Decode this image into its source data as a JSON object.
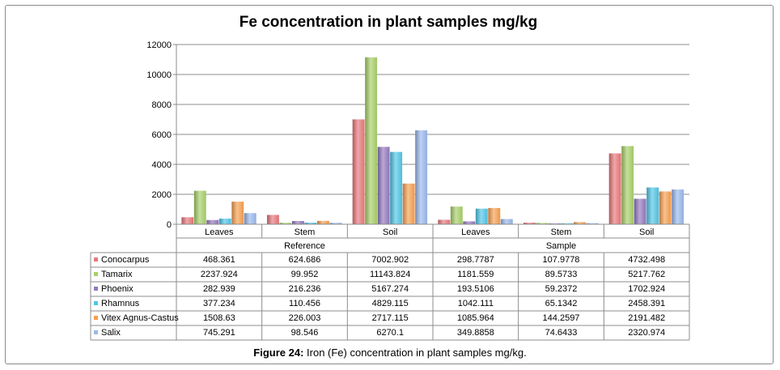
{
  "caption": {
    "figure_label": "Figure 24:",
    "text": " Iron (Fe) concentration in plant samples mg/kg."
  },
  "chart_data": {
    "type": "bar",
    "title": "Fe concentration in plant samples mg/kg",
    "xlabel": "",
    "ylabel": "",
    "ylim": [
      0,
      12000
    ],
    "yticks": [
      0,
      2000,
      4000,
      6000,
      8000,
      10000,
      12000
    ],
    "grid": true,
    "legend": "table-left",
    "groups": [
      {
        "name": "Reference",
        "categories": [
          "Leaves",
          "Stem",
          "Soil"
        ]
      },
      {
        "name": "Sample",
        "categories": [
          "Leaves",
          "Stem",
          "Soil"
        ]
      }
    ],
    "categories": [
      "Leaves",
      "Stem",
      "Soil",
      "Leaves",
      "Stem",
      "Soil"
    ],
    "series": [
      {
        "name": "Conocarpus",
        "color": "#e8787a",
        "labels": [
          "468.361",
          "624.686",
          "7002.902",
          "298.7787",
          "107.9778",
          "4732.498"
        ],
        "values": [
          468.361,
          624.686,
          7002.902,
          298.7787,
          107.9778,
          4732.498
        ]
      },
      {
        "name": "Tamarix",
        "color": "#a8d068",
        "labels": [
          "2237.924",
          "99.952",
          "11143.824",
          "1181.559",
          "89.5733",
          "5217.762"
        ],
        "values": [
          2237.924,
          99.952,
          11143.824,
          1181.559,
          89.5733,
          5217.762
        ]
      },
      {
        "name": "Phoenix",
        "color": "#9478c0",
        "labels": [
          "282.939",
          "216.236",
          "5167.274",
          "193.5106",
          "59.2372",
          "1702.924"
        ],
        "values": [
          282.939,
          216.236,
          5167.274,
          193.5106,
          59.2372,
          1702.924
        ]
      },
      {
        "name": "Rhamnus",
        "color": "#4fc6e8",
        "labels": [
          "377.234",
          "110.456",
          "4829.115",
          "1042.111",
          "65.1342",
          "2458.391"
        ],
        "values": [
          377.234,
          110.456,
          4829.115,
          1042.111,
          65.1342,
          2458.391
        ]
      },
      {
        "name": "Vitex Agnus-Castus",
        "color": "#f7a050",
        "labels": [
          "1508.63",
          "226.003",
          "2717.115",
          "1085.964",
          "144.2597",
          "2191.482"
        ],
        "values": [
          1508.63,
          226.003,
          2717.115,
          1085.964,
          144.2597,
          2191.482
        ]
      },
      {
        "name": "Salix",
        "color": "#9ab8ec",
        "labels": [
          "745.291",
          "98.546",
          "6270.1",
          "349.8858",
          "74.6433",
          "2320.974"
        ],
        "values": [
          745.291,
          98.546,
          6270.1,
          349.8858,
          74.6433,
          2320.974
        ]
      }
    ]
  }
}
